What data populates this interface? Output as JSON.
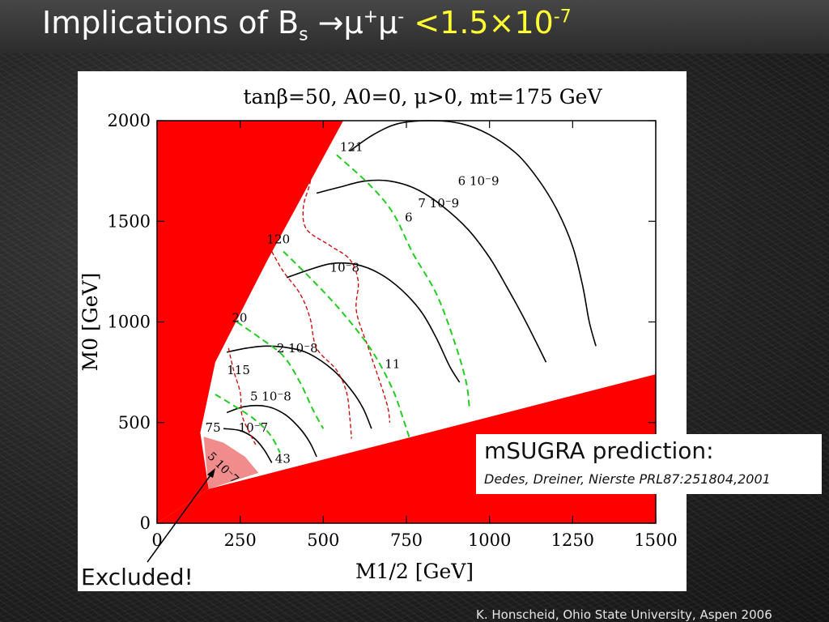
{
  "slide": {
    "title_prefix": "Implications of B",
    "title_sub": "s",
    "title_arrow": " →μ",
    "title_sup1": "+",
    "title_mu2": "μ",
    "title_sup2": "-",
    "title_bound": " <1.5×10",
    "title_bound_exp": "-7",
    "callout_heading": "mSUGRA prediction:",
    "callout_reference": "Dedes, Dreiner, Nierste PRL87:251804,2001",
    "excluded_label": "Excluded!",
    "credit": "K. Honscheid, Ohio State University, Aspen 2006",
    "colors": {
      "title": "#ffffff",
      "title_highlight": "#ffff33",
      "excluded_region": "#ff0000",
      "allowed_shade": "#f08080"
    }
  },
  "chart_data": {
    "type": "line",
    "title": "tanβ=50, A0=0, μ>0, mt=175 GeV",
    "xlabel": "M1/2 [GeV]",
    "ylabel": "M0 [GeV]",
    "xlim": [
      0,
      1500
    ],
    "ylim": [
      0,
      2000
    ],
    "xticks": [
      0,
      250,
      500,
      750,
      1000,
      1250,
      1500
    ],
    "yticks": [
      0,
      500,
      1000,
      1500,
      2000
    ],
    "grid": false,
    "excluded_regions": [
      {
        "name": "left",
        "points": [
          [
            0,
            0
          ],
          [
            0,
            2000
          ],
          [
            560,
            2000
          ],
          [
            330,
            1300
          ],
          [
            175,
            800
          ],
          [
            130,
            450
          ],
          [
            155,
            170
          ],
          [
            0,
            0
          ]
        ]
      },
      {
        "name": "bottom",
        "points": [
          [
            0,
            0
          ],
          [
            1500,
            0
          ],
          [
            1500,
            740
          ],
          [
            155,
            170
          ],
          [
            0,
            0
          ]
        ]
      }
    ],
    "shaded_region": {
      "label": "5 10^-7",
      "points": [
        [
          140,
          430
        ],
        [
          200,
          400
        ],
        [
          265,
          330
        ],
        [
          305,
          250
        ],
        [
          155,
          170
        ]
      ]
    },
    "series": [
      {
        "name": "6 10^-9",
        "style": "solid",
        "label_at": [
          905,
          1680
        ],
        "points": [
          [
            580,
            1850
          ],
          [
            650,
            1930
          ],
          [
            725,
            1985
          ],
          [
            820,
            2000
          ],
          [
            915,
            1985
          ],
          [
            1000,
            1930
          ],
          [
            1085,
            1830
          ],
          [
            1150,
            1700
          ],
          [
            1205,
            1550
          ],
          [
            1250,
            1375
          ],
          [
            1280,
            1180
          ],
          [
            1300,
            1000
          ],
          [
            1320,
            880
          ]
        ]
      },
      {
        "name": "7 10^-9",
        "style": "solid",
        "label_at": [
          785,
          1570
        ],
        "points": [
          [
            480,
            1640
          ],
          [
            550,
            1670
          ],
          [
            625,
            1700
          ],
          [
            700,
            1700
          ],
          [
            780,
            1660
          ],
          [
            855,
            1580
          ],
          [
            935,
            1460
          ],
          [
            1000,
            1320
          ],
          [
            1050,
            1180
          ],
          [
            1100,
            1030
          ],
          [
            1140,
            900
          ],
          [
            1170,
            800
          ]
        ]
      },
      {
        "name": "10^-8",
        "style": "solid",
        "label_at": [
          520,
          1250
        ],
        "points": [
          [
            390,
            1220
          ],
          [
            450,
            1255
          ],
          [
            525,
            1290
          ],
          [
            600,
            1285
          ],
          [
            670,
            1240
          ],
          [
            735,
            1160
          ],
          [
            795,
            1050
          ],
          [
            840,
            920
          ],
          [
            880,
            780
          ],
          [
            910,
            700
          ]
        ]
      },
      {
        "name": "2 10^-8",
        "style": "solid",
        "label_at": [
          360,
          850
        ],
        "points": [
          [
            210,
            850
          ],
          [
            270,
            870
          ],
          [
            330,
            880
          ],
          [
            400,
            870
          ],
          [
            460,
            840
          ],
          [
            530,
            760
          ],
          [
            585,
            660
          ],
          [
            620,
            570
          ],
          [
            645,
            470
          ]
        ]
      },
      {
        "name": "5 10^-8",
        "style": "solid",
        "label_at": [
          280,
          610
        ],
        "points": [
          [
            210,
            550
          ],
          [
            265,
            580
          ],
          [
            330,
            580
          ],
          [
            385,
            540
          ],
          [
            430,
            470
          ],
          [
            460,
            400
          ],
          [
            480,
            330
          ]
        ]
      },
      {
        "name": "10^-7",
        "style": "solid",
        "label_at": [
          245,
          455
        ],
        "points": [
          [
            200,
            470
          ],
          [
            250,
            460
          ],
          [
            290,
            425
          ],
          [
            320,
            370
          ],
          [
            345,
            300
          ]
        ]
      },
      {
        "name": "121",
        "style": "red-dashed",
        "label_at": [
          550,
          1850
        ],
        "points": [
          [
            470,
            1800
          ],
          [
            460,
            1690
          ],
          [
            440,
            1570
          ],
          [
            450,
            1460
          ],
          [
            520,
            1380
          ],
          [
            580,
            1310
          ],
          [
            605,
            1200
          ],
          [
            600,
            1050
          ],
          [
            640,
            850
          ],
          [
            690,
            600
          ],
          [
            700,
            500
          ]
        ]
      },
      {
        "name": "120",
        "style": "red-dashed",
        "label_at": [
          330,
          1390
        ],
        "points": [
          [
            345,
            1350
          ],
          [
            380,
            1250
          ],
          [
            430,
            1140
          ],
          [
            460,
            1020
          ],
          [
            480,
            870
          ],
          [
            540,
            760
          ],
          [
            570,
            650
          ],
          [
            580,
            520
          ],
          [
            585,
            420
          ]
        ]
      },
      {
        "name": "115",
        "style": "red-dashed",
        "label_at": [
          210,
          740
        ],
        "points": [
          [
            215,
            870
          ],
          [
            230,
            760
          ],
          [
            250,
            650
          ],
          [
            255,
            540
          ],
          [
            275,
            460
          ],
          [
            300,
            380
          ]
        ]
      },
      {
        "name": "6",
        "style": "green-dashed",
        "label_at": [
          745,
          1500
        ],
        "points": [
          [
            540,
            1830
          ],
          [
            640,
            1680
          ],
          [
            710,
            1540
          ],
          [
            770,
            1340
          ],
          [
            840,
            1140
          ],
          [
            895,
            900
          ],
          [
            930,
            700
          ],
          [
            940,
            560
          ]
        ]
      },
      {
        "name": "11",
        "style": "green-dashed",
        "label_at": [
          685,
          770
        ],
        "points": [
          [
            380,
            1350
          ],
          [
            460,
            1220
          ],
          [
            540,
            1080
          ],
          [
            610,
            940
          ],
          [
            660,
            820
          ],
          [
            710,
            660
          ],
          [
            740,
            520
          ],
          [
            760,
            420
          ]
        ]
      },
      {
        "name": "20",
        "style": "green-dashed",
        "label_at": [
          225,
          1000
        ],
        "points": [
          [
            240,
            1000
          ],
          [
            310,
            920
          ],
          [
            380,
            830
          ],
          [
            430,
            700
          ],
          [
            470,
            560
          ],
          [
            500,
            470
          ]
        ]
      },
      {
        "name": "75",
        "style": "green-dashed",
        "label_at": [
          145,
          455
        ],
        "points": [
          [
            175,
            640
          ],
          [
            225,
            590
          ],
          [
            290,
            520
          ],
          [
            340,
            440
          ],
          [
            370,
            350
          ]
        ]
      }
    ],
    "extra_labels": [
      {
        "text": "43",
        "at": [
          355,
          300
        ]
      }
    ]
  }
}
